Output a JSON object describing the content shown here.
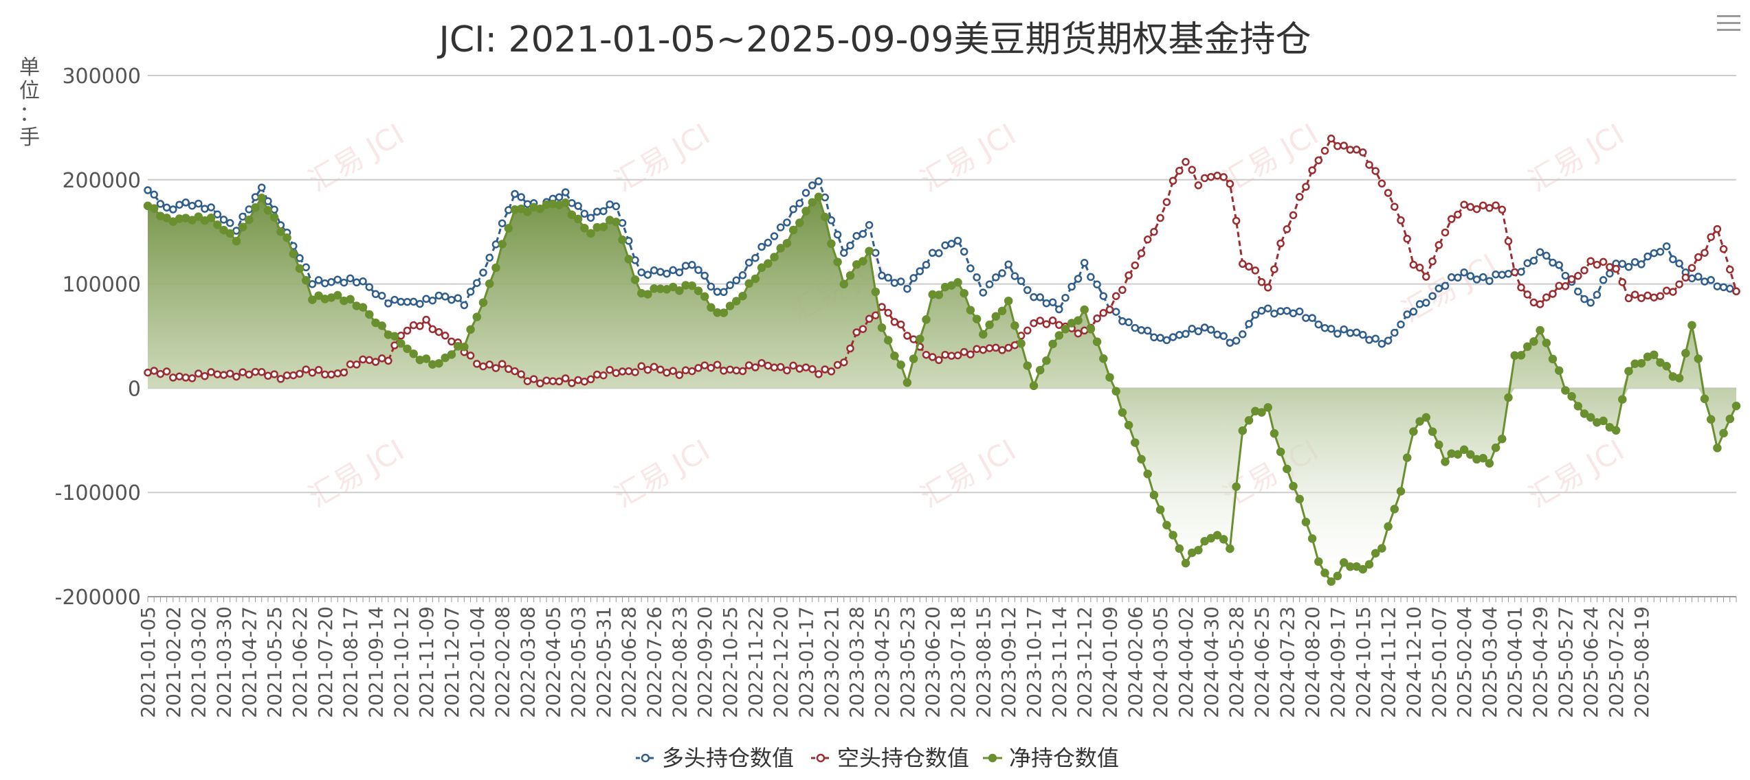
{
  "chart_data": {
    "type": "line",
    "title": "JCI: 2021-01-05~2025-09-09美豆期货期权基金持仓",
    "ylabel": "单位：手",
    "ylim": [
      -200000,
      300000
    ],
    "yticks": [
      300000,
      200000,
      100000,
      0,
      -100000,
      -200000
    ],
    "ytick_labels": [
      "300000",
      "200000",
      "100000",
      "0",
      "-100000",
      "-200000"
    ],
    "xtick_labels": [
      "2021-01-05",
      "2021-02-02",
      "2021-03-02",
      "2021-03-30",
      "2021-04-27",
      "2021-05-25",
      "2021-06-22",
      "2021-07-20",
      "2021-08-17",
      "2021-09-14",
      "2021-10-12",
      "2021-11-09",
      "2021-12-07",
      "2022-01-04",
      "2022-02-08",
      "2022-03-08",
      "2022-04-05",
      "2022-05-03",
      "2022-05-31",
      "2022-06-28",
      "2022-07-26",
      "2022-08-23",
      "2022-09-20",
      "2022-10-25",
      "2022-11-22",
      "2022-12-20",
      "2023-01-17",
      "2023-02-21",
      "2023-03-28",
      "2023-04-25",
      "2023-05-23",
      "2023-06-20",
      "2023-07-18",
      "2023-08-15",
      "2023-09-12",
      "2023-10-17",
      "2023-11-14",
      "2023-12-12",
      "2024-01-09",
      "2024-02-06",
      "2024-03-05",
      "2024-04-02",
      "2024-04-30",
      "2024-05-28",
      "2024-06-25",
      "2024-07-23",
      "2024-08-20",
      "2024-09-17",
      "2024-10-15",
      "2024-11-12",
      "2024-12-10",
      "2025-01-07",
      "2025-02-04",
      "2025-03-04",
      "2025-04-01",
      "2025-04-29",
      "2025-05-27",
      "2025-06-24",
      "2025-07-22",
      "2025-08-19"
    ],
    "grid": true,
    "legend_position": "bottom",
    "watermark": "汇易 JCI",
    "series": [
      {
        "name": "多头持仓数值",
        "color": "#2f5d8c",
        "knots": [
          [
            0,
            190000
          ],
          [
            3,
            170000
          ],
          [
            6,
            180000
          ],
          [
            10,
            170000
          ],
          [
            14,
            155000
          ],
          [
            18,
            190000
          ],
          [
            22,
            150000
          ],
          [
            26,
            100000
          ],
          [
            30,
            105000
          ],
          [
            34,
            100000
          ],
          [
            38,
            85000
          ],
          [
            42,
            80000
          ],
          [
            46,
            90000
          ],
          [
            50,
            80000
          ],
          [
            54,
            125000
          ],
          [
            58,
            185000
          ],
          [
            62,
            175000
          ],
          [
            66,
            185000
          ],
          [
            70,
            165000
          ],
          [
            74,
            175000
          ],
          [
            78,
            110000
          ],
          [
            82,
            110000
          ],
          [
            86,
            120000
          ],
          [
            90,
            90000
          ],
          [
            94,
            110000
          ],
          [
            98,
            140000
          ],
          [
            102,
            170000
          ],
          [
            106,
            200000
          ],
          [
            110,
            130000
          ],
          [
            114,
            155000
          ],
          [
            116,
            110000
          ],
          [
            120,
            95000
          ],
          [
            124,
            130000
          ],
          [
            128,
            140000
          ],
          [
            132,
            95000
          ],
          [
            136,
            115000
          ],
          [
            140,
            90000
          ],
          [
            144,
            75000
          ],
          [
            148,
            120000
          ],
          [
            152,
            75000
          ],
          [
            156,
            60000
          ],
          [
            160,
            45000
          ],
          [
            164,
            55000
          ],
          [
            168,
            55000
          ],
          [
            172,
            45000
          ],
          [
            176,
            75000
          ],
          [
            180,
            75000
          ],
          [
            184,
            65000
          ],
          [
            188,
            55000
          ],
          [
            192,
            50000
          ],
          [
            196,
            45000
          ],
          [
            200,
            75000
          ],
          [
            204,
            95000
          ],
          [
            208,
            110000
          ],
          [
            212,
            105000
          ],
          [
            216,
            110000
          ],
          [
            220,
            130000
          ],
          [
            224,
            110000
          ],
          [
            228,
            80000
          ],
          [
            232,
            120000
          ],
          [
            236,
            120000
          ],
          [
            240,
            135000
          ],
          [
            244,
            105000
          ],
          [
            248,
            100000
          ],
          [
            251,
            95000
          ]
        ]
      },
      {
        "name": "空头持仓数值",
        "color": "#9b2d30",
        "knots": [
          [
            0,
            15000
          ],
          [
            4,
            12000
          ],
          [
            10,
            12000
          ],
          [
            14,
            15000
          ],
          [
            20,
            12000
          ],
          [
            26,
            15000
          ],
          [
            30,
            15000
          ],
          [
            34,
            25000
          ],
          [
            38,
            30000
          ],
          [
            40,
            50000
          ],
          [
            44,
            65000
          ],
          [
            48,
            45000
          ],
          [
            52,
            25000
          ],
          [
            56,
            20000
          ],
          [
            60,
            10000
          ],
          [
            64,
            5000
          ],
          [
            68,
            8000
          ],
          [
            70,
            10000
          ],
          [
            74,
            15000
          ],
          [
            78,
            20000
          ],
          [
            82,
            15000
          ],
          [
            86,
            18000
          ],
          [
            90,
            20000
          ],
          [
            94,
            18000
          ],
          [
            98,
            22000
          ],
          [
            102,
            20000
          ],
          [
            106,
            15000
          ],
          [
            110,
            25000
          ],
          [
            112,
            50000
          ],
          [
            116,
            80000
          ],
          [
            120,
            50000
          ],
          [
            124,
            30000
          ],
          [
            128,
            30000
          ],
          [
            132,
            40000
          ],
          [
            136,
            35000
          ],
          [
            140,
            65000
          ],
          [
            144,
            60000
          ],
          [
            148,
            55000
          ],
          [
            152,
            75000
          ],
          [
            156,
            120000
          ],
          [
            160,
            160000
          ],
          [
            162,
            200000
          ],
          [
            164,
            220000
          ],
          [
            166,
            195000
          ],
          [
            169,
            205000
          ],
          [
            171,
            200000
          ],
          [
            173,
            120000
          ],
          [
            175,
            110000
          ],
          [
            177,
            95000
          ],
          [
            179,
            140000
          ],
          [
            182,
            180000
          ],
          [
            185,
            220000
          ],
          [
            187,
            240000
          ],
          [
            189,
            230000
          ],
          [
            192,
            225000
          ],
          [
            195,
            200000
          ],
          [
            198,
            160000
          ],
          [
            200,
            120000
          ],
          [
            202,
            110000
          ],
          [
            205,
            150000
          ],
          [
            208,
            175000
          ],
          [
            212,
            175000
          ],
          [
            214,
            170000
          ],
          [
            216,
            110000
          ],
          [
            218,
            90000
          ],
          [
            220,
            80000
          ],
          [
            224,
            100000
          ],
          [
            228,
            120000
          ],
          [
            232,
            115000
          ],
          [
            234,
            90000
          ],
          [
            238,
            85000
          ],
          [
            242,
            100000
          ],
          [
            246,
            130000
          ],
          [
            248,
            155000
          ],
          [
            251,
            95000
          ]
        ]
      },
      {
        "name": "净持仓数值",
        "color": "#6a8f2f",
        "knots": [
          [
            0,
            175000
          ],
          [
            3,
            160000
          ],
          [
            6,
            165000
          ],
          [
            10,
            160000
          ],
          [
            14,
            145000
          ],
          [
            18,
            180000
          ],
          [
            22,
            145000
          ],
          [
            26,
            85000
          ],
          [
            30,
            90000
          ],
          [
            34,
            75000
          ],
          [
            38,
            55000
          ],
          [
            42,
            30000
          ],
          [
            46,
            25000
          ],
          [
            50,
            40000
          ],
          [
            54,
            100000
          ],
          [
            58,
            170000
          ],
          [
            62,
            175000
          ],
          [
            66,
            175000
          ],
          [
            70,
            150000
          ],
          [
            74,
            160000
          ],
          [
            78,
            90000
          ],
          [
            82,
            95000
          ],
          [
            86,
            100000
          ],
          [
            90,
            70000
          ],
          [
            94,
            90000
          ],
          [
            98,
            120000
          ],
          [
            102,
            150000
          ],
          [
            106,
            185000
          ],
          [
            110,
            100000
          ],
          [
            114,
            130000
          ],
          [
            116,
            60000
          ],
          [
            120,
            5000
          ],
          [
            124,
            90000
          ],
          [
            128,
            100000
          ],
          [
            132,
            55000
          ],
          [
            136,
            80000
          ],
          [
            140,
            5000
          ],
          [
            144,
            50000
          ],
          [
            148,
            75000
          ],
          [
            152,
            10000
          ],
          [
            156,
            -50000
          ],
          [
            160,
            -120000
          ],
          [
            162,
            -140000
          ],
          [
            164,
            -165000
          ],
          [
            166,
            -155000
          ],
          [
            169,
            -140000
          ],
          [
            171,
            -150000
          ],
          [
            173,
            -40000
          ],
          [
            175,
            -25000
          ],
          [
            177,
            -20000
          ],
          [
            179,
            -60000
          ],
          [
            182,
            -110000
          ],
          [
            185,
            -165000
          ],
          [
            187,
            -185000
          ],
          [
            189,
            -170000
          ],
          [
            192,
            -175000
          ],
          [
            195,
            -150000
          ],
          [
            198,
            -100000
          ],
          [
            200,
            -40000
          ],
          [
            202,
            -25000
          ],
          [
            205,
            -70000
          ],
          [
            208,
            -60000
          ],
          [
            212,
            -70000
          ],
          [
            214,
            -50000
          ],
          [
            216,
            30000
          ],
          [
            218,
            40000
          ],
          [
            220,
            55000
          ],
          [
            224,
            0
          ],
          [
            228,
            -30000
          ],
          [
            232,
            -40000
          ],
          [
            234,
            20000
          ],
          [
            238,
            30000
          ],
          [
            242,
            10000
          ],
          [
            244,
            60000
          ],
          [
            246,
            -10000
          ],
          [
            248,
            -55000
          ],
          [
            251,
            -15000
          ]
        ]
      }
    ]
  },
  "header": {
    "title": "JCI: 2021-01-05~2025-09-09美豆期货期权基金持仓"
  },
  "toolbar": {
    "menu_icon": "hamburger-menu-icon"
  },
  "legend": {
    "items": [
      {
        "label": "多头持仓数值",
        "color": "#2f5d8c"
      },
      {
        "label": "空头持仓数值",
        "color": "#9b2d30"
      },
      {
        "label": "净持仓数值",
        "color": "#6a8f2f"
      }
    ]
  }
}
